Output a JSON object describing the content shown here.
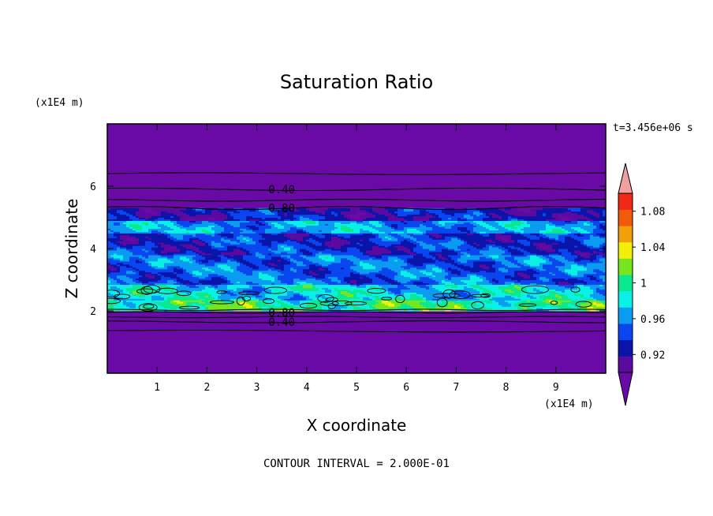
{
  "chart_data": {
    "type": "heatmap",
    "title": "Saturation Ratio",
    "xlabel": "X coordinate",
    "ylabel": "Z coordinate",
    "x_unit": "(x1E4 m)",
    "y_unit": "(x1E4 m)",
    "time_label": "t=3.456e+06 s",
    "footer": "CONTOUR INTERVAL = 2.000E-01",
    "xlim": [
      0,
      10
    ],
    "ylim": [
      0,
      8
    ],
    "x_ticks": [
      "1",
      "2",
      "3",
      "4",
      "5",
      "6",
      "7",
      "8",
      "9"
    ],
    "y_ticks": [
      "2",
      "4",
      "6"
    ],
    "colorbar": {
      "levels": [
        0.9,
        0.92,
        0.94,
        0.96,
        0.98,
        1.0,
        1.02,
        1.04,
        1.06,
        1.08,
        1.1
      ],
      "labels": [
        "0.92",
        "0.96",
        "1",
        "1.04",
        "1.08"
      ],
      "label_values": [
        0.92,
        0.96,
        1.0,
        1.04,
        1.08
      ],
      "colors": [
        "#5a0aa0",
        "#0a14a8",
        "#0a46f0",
        "#0a9cf0",
        "#0af0e6",
        "#0ae890",
        "#78e61e",
        "#f0f00a",
        "#f0a00a",
        "#f05a0a",
        "#f02814"
      ],
      "under_color": "#6a0aa6",
      "over_color": "#f0a0a0"
    },
    "contour_labels": [
      {
        "text": "0.40",
        "x": 3.5,
        "z": 5.9
      },
      {
        "text": "0.80",
        "x": 3.5,
        "z": 5.3
      },
      {
        "text": "0.80",
        "x": 3.5,
        "z": 1.95
      },
      {
        "text": "0.40",
        "x": 3.5,
        "z": 1.65
      }
    ],
    "fill_layers": [
      {
        "name": "upper dry region",
        "value": 0.89
      },
      {
        "name": "cloud layer",
        "z_range": [
          2.0,
          5.3
        ],
        "value_range": [
          0.9,
          1.02
        ]
      },
      {
        "name": "lower dry region",
        "value": 0.89
      }
    ]
  }
}
